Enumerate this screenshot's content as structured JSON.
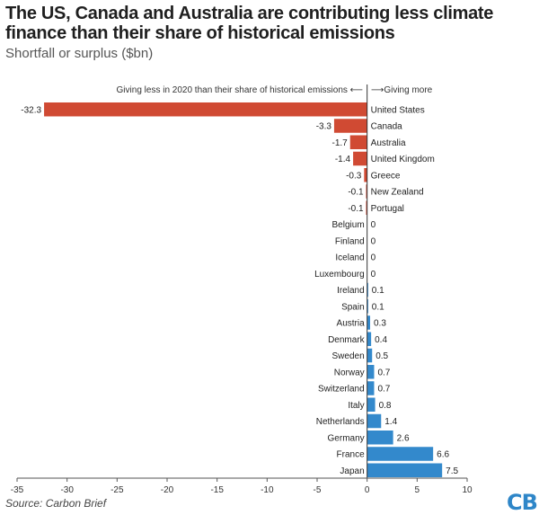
{
  "title": "The US, Canada and Australia are contributing less climate finance than their share of historical emissions",
  "subtitle": "Shortfall or surplus ($bn)",
  "source": "Source: Carbon Brief",
  "logo_text": "CB",
  "annotation_left": "Giving less in 2020 than their share of historical emissions ⟵",
  "annotation_right": "⟶Giving more",
  "colors": {
    "negative": "#d04a33",
    "positive": "#3389cc",
    "zero_line": "#333333",
    "axis": "#555555"
  },
  "chart_data": {
    "type": "bar",
    "orientation": "horizontal",
    "title": "The US, Canada and Australia are contributing less climate finance than their share of historical emissions",
    "subtitle": "Shortfall or surplus ($bn)",
    "xlabel": "",
    "ylabel": "",
    "xlim": [
      -35,
      10
    ],
    "xticks": [
      -35,
      -30,
      -25,
      -20,
      -15,
      -10,
      -5,
      0,
      5,
      10
    ],
    "categories": [
      "United States",
      "Canada",
      "Australia",
      "United Kingdom",
      "Greece",
      "New Zealand",
      "Portugal",
      "Belgium",
      "Finland",
      "Iceland",
      "Luxembourg",
      "Ireland",
      "Spain",
      "Austria",
      "Denmark",
      "Sweden",
      "Norway",
      "Switzerland",
      "Italy",
      "Netherlands",
      "Germany",
      "France",
      "Japan"
    ],
    "values": [
      -32.3,
      -3.3,
      -1.7,
      -1.4,
      -0.3,
      -0.1,
      -0.1,
      0,
      0,
      0,
      0,
      0.1,
      0.1,
      0.3,
      0.4,
      0.5,
      0.7,
      0.7,
      0.8,
      1.4,
      2.6,
      6.6,
      7.5
    ]
  }
}
